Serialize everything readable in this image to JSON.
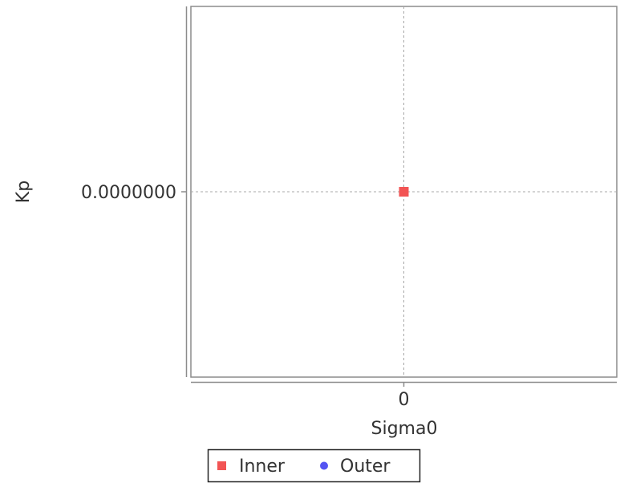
{
  "chart_data": {
    "type": "scatter",
    "xlabel": "Sigma0",
    "ylabel": "Kp",
    "x_ticks": [
      "0"
    ],
    "y_ticks": [
      "0.0000000"
    ],
    "xlim": [
      -1,
      1
    ],
    "ylim": [
      -1,
      1
    ],
    "grid": true,
    "legend_position": "bottom",
    "series": [
      {
        "name": "Inner",
        "marker": "square",
        "color": "#f25454",
        "points": [
          {
            "x": 0,
            "y": 0
          }
        ]
      },
      {
        "name": "Outer",
        "marker": "circle",
        "color": "#5454f2",
        "points": []
      }
    ]
  }
}
